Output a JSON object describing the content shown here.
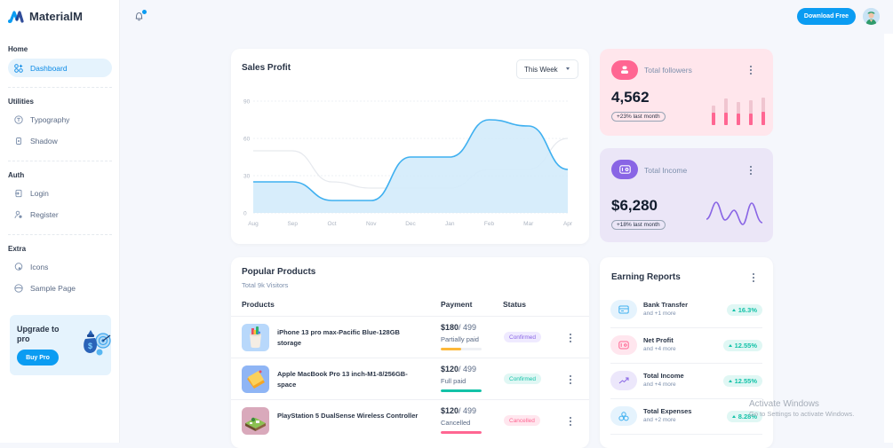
{
  "app": {
    "name": "MaterialM"
  },
  "sidebar": {
    "sections": [
      {
        "heading": "Home",
        "items": [
          {
            "label": "Dashboard",
            "icon": "dashboard-icon",
            "active": true
          }
        ]
      },
      {
        "heading": "Utilities",
        "items": [
          {
            "label": "Typography",
            "icon": "typography-icon"
          },
          {
            "label": "Shadow",
            "icon": "shadow-icon"
          }
        ]
      },
      {
        "heading": "Auth",
        "items": [
          {
            "label": "Login",
            "icon": "login-icon"
          },
          {
            "label": "Register",
            "icon": "register-icon"
          }
        ]
      },
      {
        "heading": "Extra",
        "items": [
          {
            "label": "Icons",
            "icon": "icons-icon"
          },
          {
            "label": "Sample Page",
            "icon": "sample-page-icon"
          }
        ]
      }
    ],
    "upgrade": {
      "title": "Upgrade to pro",
      "button": "Buy Pro"
    }
  },
  "topbar": {
    "download_button": "Download Free",
    "notification_dot": true
  },
  "sales_profit": {
    "title": "Sales Profit",
    "period": "This Week"
  },
  "chart_data": {
    "type": "area",
    "title": "Sales Profit",
    "categories": [
      "Aug",
      "Sep",
      "Oct",
      "Nov",
      "Dec",
      "Jan",
      "Feb",
      "Mar",
      "Apr"
    ],
    "series": [
      {
        "name": "primary",
        "color": "#3fb0f0",
        "values": [
          25,
          25,
          10,
          10,
          45,
          45,
          75,
          70,
          35
        ]
      },
      {
        "name": "secondary",
        "color": "#e6e9ee",
        "values": [
          50,
          50,
          25,
          20,
          20,
          20,
          35,
          35,
          60
        ]
      }
    ],
    "yticks": [
      0,
      30,
      60,
      90
    ],
    "ylim": [
      0,
      90
    ],
    "grid": true
  },
  "followers": {
    "label": "Total followers",
    "value": "4,562",
    "change": "+23% last month",
    "bars": [
      {
        "total": 0.62,
        "fill": 0.38
      },
      {
        "total": 0.82,
        "fill": 0.4
      },
      {
        "total": 0.72,
        "fill": 0.35
      },
      {
        "total": 0.78,
        "fill": 0.37
      },
      {
        "total": 0.86,
        "fill": 0.42
      }
    ],
    "color": "#ff6692"
  },
  "income": {
    "label": "Total Income",
    "value": "$6,280",
    "change": "+18% last month",
    "color": "#8965e5"
  },
  "popular_products": {
    "title": "Popular Products",
    "subtitle": "Total 9k Visitors",
    "columns": [
      "Products",
      "Payment",
      "Status"
    ],
    "rows": [
      {
        "name": "iPhone 13 pro max-Pacific Blue-128GB storage",
        "paid": "$180",
        "total": "/ 499",
        "payment_status": "Partially paid",
        "progress": 0.5,
        "bar_color": "#fdb839",
        "status": "Confirmed",
        "status_bg": "#efeaff",
        "status_fg": "#8965e5"
      },
      {
        "name": "Apple MacBook Pro 13 inch-M1-8/256GB-space",
        "paid": "$120",
        "total": "/ 499",
        "payment_status": "Full paid",
        "progress": 1.0,
        "bar_color": "#13c2a8",
        "status": "Confirmed",
        "status_bg": "#e0f7f4",
        "status_fg": "#13c2a8"
      },
      {
        "name": "PlayStation 5 DualSense Wireless Controller",
        "paid": "$120",
        "total": "/ 499",
        "payment_status": "Cancelled",
        "progress": 1.0,
        "bar_color": "#ff6692",
        "status": "Cancelled",
        "status_bg": "#ffe6ee",
        "status_fg": "#ff6692"
      }
    ]
  },
  "earning_reports": {
    "title": "Earning Reports",
    "items": [
      {
        "title": "Bank Transfer",
        "sub": "and +1 more",
        "pct": "16.3%",
        "icon": "credit-card-icon",
        "bg": "#e5f3fd",
        "fg": "#3fb0f0"
      },
      {
        "title": "Net Profit",
        "sub": "and +4 more",
        "pct": "12.55%",
        "icon": "wallet-icon",
        "bg": "#ffe6ee",
        "fg": "#ff6692"
      },
      {
        "title": "Total Income",
        "sub": "and +4 more",
        "pct": "12.55%",
        "icon": "trend-up-icon",
        "bg": "#ece7fb",
        "fg": "#8965e5"
      },
      {
        "title": "Total Expenses",
        "sub": "and +2 more",
        "pct": "8.28%",
        "icon": "coins-icon",
        "bg": "#e5f3fd",
        "fg": "#3fb0f0"
      }
    ]
  },
  "watermark": {
    "title": "Activate Windows",
    "sub": "Go to Settings to activate Windows."
  }
}
